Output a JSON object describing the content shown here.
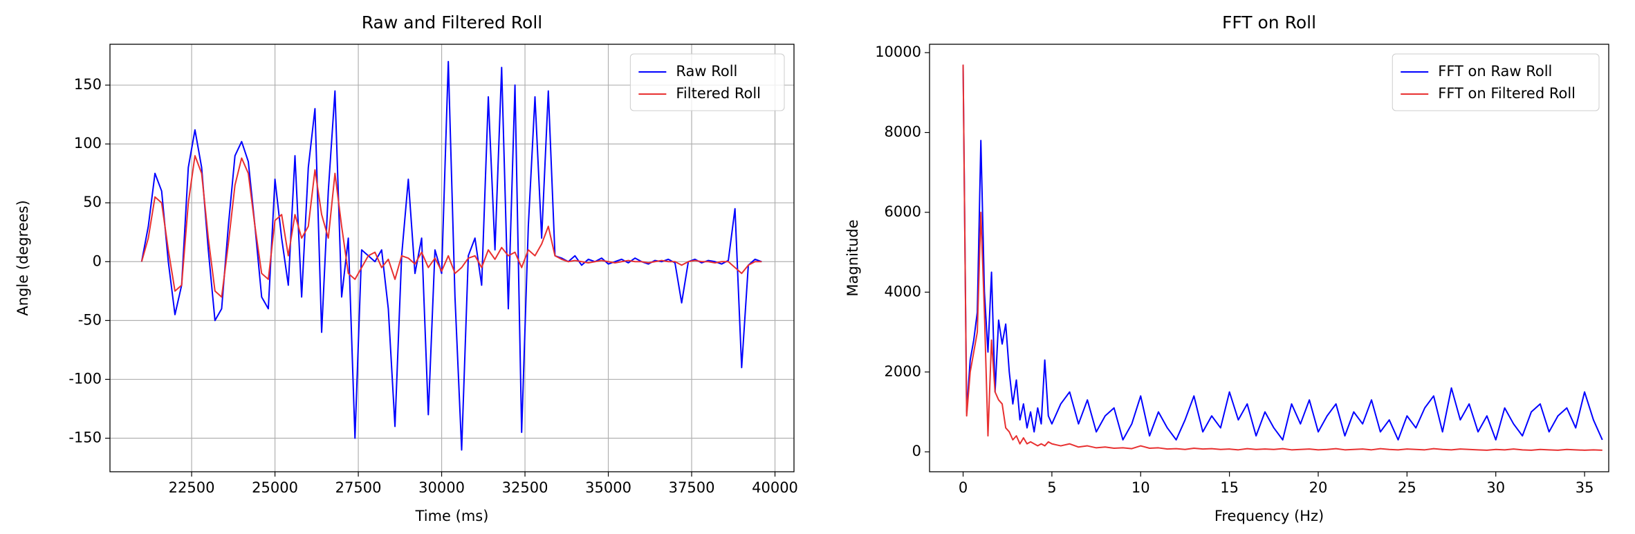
{
  "chart_data": [
    {
      "type": "line",
      "title": "Raw and Filtered Roll",
      "xlabel": "Time (ms)",
      "ylabel": "Angle (degrees)",
      "x": [
        21000,
        21200,
        21400,
        21600,
        21800,
        22000,
        22200,
        22400,
        22600,
        22800,
        23000,
        23200,
        23400,
        23600,
        23800,
        24000,
        24200,
        24400,
        24600,
        24800,
        25000,
        25200,
        25400,
        25600,
        25800,
        26000,
        26200,
        26400,
        26600,
        26800,
        27000,
        27200,
        27400,
        27600,
        27800,
        28000,
        28200,
        28400,
        28600,
        28800,
        29000,
        29200,
        29400,
        29600,
        29800,
        30000,
        30200,
        30400,
        30600,
        30800,
        31000,
        31200,
        31400,
        31600,
        31800,
        32000,
        32200,
        32400,
        32600,
        32800,
        33000,
        33200,
        33400,
        33600,
        33800,
        34000,
        34200,
        34400,
        34600,
        34800,
        35000,
        35200,
        35400,
        35600,
        35800,
        36000,
        36200,
        36400,
        36600,
        36800,
        37000,
        37200,
        37400,
        37600,
        37800,
        38000,
        38200,
        38400,
        38600,
        38800,
        39000,
        39200,
        39400,
        39600
      ],
      "series": [
        {
          "name": "Raw Roll",
          "color": "#0000ff",
          "values": [
            0,
            30,
            75,
            60,
            0,
            -45,
            -20,
            80,
            112,
            80,
            10,
            -50,
            -40,
            30,
            90,
            102,
            85,
            30,
            -30,
            -40,
            70,
            20,
            -20,
            90,
            -30,
            80,
            130,
            -60,
            60,
            145,
            -30,
            20,
            -150,
            10,
            5,
            0,
            10,
            -40,
            -140,
            5,
            70,
            -10,
            20,
            -130,
            10,
            -10,
            170,
            -30,
            -160,
            5,
            20,
            -20,
            140,
            10,
            165,
            -40,
            150,
            -145,
            30,
            140,
            20,
            145,
            5,
            3,
            0,
            5,
            -3,
            2,
            0,
            3,
            -2,
            0,
            2,
            -1,
            3,
            0,
            -2,
            1,
            0,
            2,
            -1,
            -35,
            0,
            2,
            -1,
            1,
            0,
            -2,
            1,
            45,
            -90,
            -3,
            2,
            0
          ]
        },
        {
          "name": "Filtered Roll",
          "color": "#e83030",
          "values": [
            0,
            20,
            55,
            50,
            10,
            -25,
            -20,
            50,
            90,
            75,
            20,
            -25,
            -30,
            15,
            65,
            88,
            75,
            30,
            -10,
            -15,
            35,
            40,
            5,
            40,
            20,
            30,
            78,
            40,
            20,
            75,
            30,
            -10,
            -15,
            -5,
            5,
            8,
            -5,
            2,
            -15,
            5,
            3,
            -2,
            8,
            -5,
            3,
            -8,
            5,
            -10,
            -5,
            3,
            5,
            -5,
            10,
            2,
            12,
            5,
            8,
            -5,
            10,
            5,
            15,
            30,
            5,
            2,
            0,
            1,
            0,
            -1,
            0,
            1,
            0,
            -1,
            0,
            1,
            0,
            0,
            -1,
            0,
            1,
            0,
            0,
            -3,
            0,
            1,
            0,
            0,
            -1,
            0,
            0,
            -5,
            -10,
            -3,
            0,
            0
          ]
        }
      ],
      "xlim": [
        20050,
        40570
      ],
      "ylim": [
        -178.5,
        184.7
      ],
      "xticks": [
        22500,
        25000,
        27500,
        30000,
        32500,
        35000,
        37500,
        40000
      ],
      "yticks": [
        -150,
        -100,
        -50,
        0,
        50,
        100,
        150
      ],
      "grid": true,
      "legend": "upper right"
    },
    {
      "type": "line",
      "title": "FFT on Roll",
      "xlabel": "Frequency (Hz)",
      "ylabel": "Magnitude",
      "x": [
        0,
        0.2,
        0.4,
        0.6,
        0.8,
        1.0,
        1.2,
        1.4,
        1.6,
        1.8,
        2.0,
        2.2,
        2.4,
        2.6,
        2.8,
        3.0,
        3.2,
        3.4,
        3.6,
        3.8,
        4.0,
        4.2,
        4.4,
        4.6,
        4.8,
        5.0,
        5.5,
        6,
        6.5,
        7,
        7.5,
        8,
        8.5,
        9,
        9.5,
        10,
        10.5,
        11,
        11.5,
        12,
        12.5,
        13,
        13.5,
        14,
        14.5,
        15,
        15.5,
        16,
        16.5,
        17,
        17.5,
        18,
        18.5,
        19,
        19.5,
        20,
        20.5,
        21,
        21.5,
        22,
        22.5,
        23,
        23.5,
        24,
        24.5,
        25,
        25.5,
        26,
        26.5,
        27,
        27.5,
        28,
        28.5,
        29,
        29.5,
        30,
        30.5,
        31,
        31.5,
        32,
        32.5,
        33,
        33.5,
        34,
        34.5,
        35,
        35.5,
        36
      ],
      "series": [
        {
          "name": "FFT on Raw Roll",
          "color": "#0000ff",
          "values": [
            9700,
            1000,
            2300,
            2800,
            3500,
            7800,
            4000,
            2500,
            4500,
            1500,
            3300,
            2700,
            3200,
            2000,
            1200,
            1800,
            800,
            1200,
            600,
            1000,
            500,
            1100,
            700,
            2300,
            900,
            700,
            1200,
            1500,
            700,
            1300,
            500,
            900,
            1100,
            300,
            700,
            1400,
            400,
            1000,
            600,
            300,
            800,
            1400,
            500,
            900,
            600,
            1500,
            800,
            1200,
            400,
            1000,
            600,
            300,
            1200,
            700,
            1300,
            500,
            900,
            1200,
            400,
            1000,
            700,
            1300,
            500,
            800,
            300,
            900,
            600,
            1100,
            1400,
            500,
            1600,
            800,
            1200,
            500,
            900,
            300,
            1100,
            700,
            400,
            1000,
            1200,
            500,
            900,
            1100,
            600,
            1500,
            800,
            300
          ]
        },
        {
          "name": "FFT on Filtered Roll",
          "color": "#e83030",
          "values": [
            9700,
            900,
            2000,
            2500,
            3000,
            6000,
            3500,
            400,
            2800,
            1500,
            1300,
            1200,
            600,
            500,
            300,
            400,
            200,
            350,
            200,
            250,
            200,
            150,
            200,
            150,
            250,
            200,
            150,
            200,
            120,
            150,
            100,
            120,
            90,
            100,
            80,
            150,
            90,
            100,
            70,
            80,
            60,
            90,
            70,
            80,
            60,
            70,
            50,
            80,
            60,
            70,
            60,
            80,
            50,
            60,
            70,
            50,
            60,
            80,
            50,
            60,
            70,
            50,
            80,
            60,
            50,
            70,
            60,
            50,
            80,
            60,
            50,
            70,
            60,
            50,
            40,
            60,
            50,
            70,
            50,
            40,
            60,
            50,
            40,
            60,
            50,
            40,
            50,
            40
          ]
        }
      ],
      "xlim": [
        -1.89,
        36.36
      ],
      "ylim": [
        -499,
        10210
      ],
      "xticks": [
        0,
        5,
        10,
        15,
        20,
        25,
        30,
        35
      ],
      "yticks": [
        0,
        2000,
        4000,
        6000,
        8000,
        10000
      ],
      "grid": false,
      "legend": "upper right"
    }
  ]
}
